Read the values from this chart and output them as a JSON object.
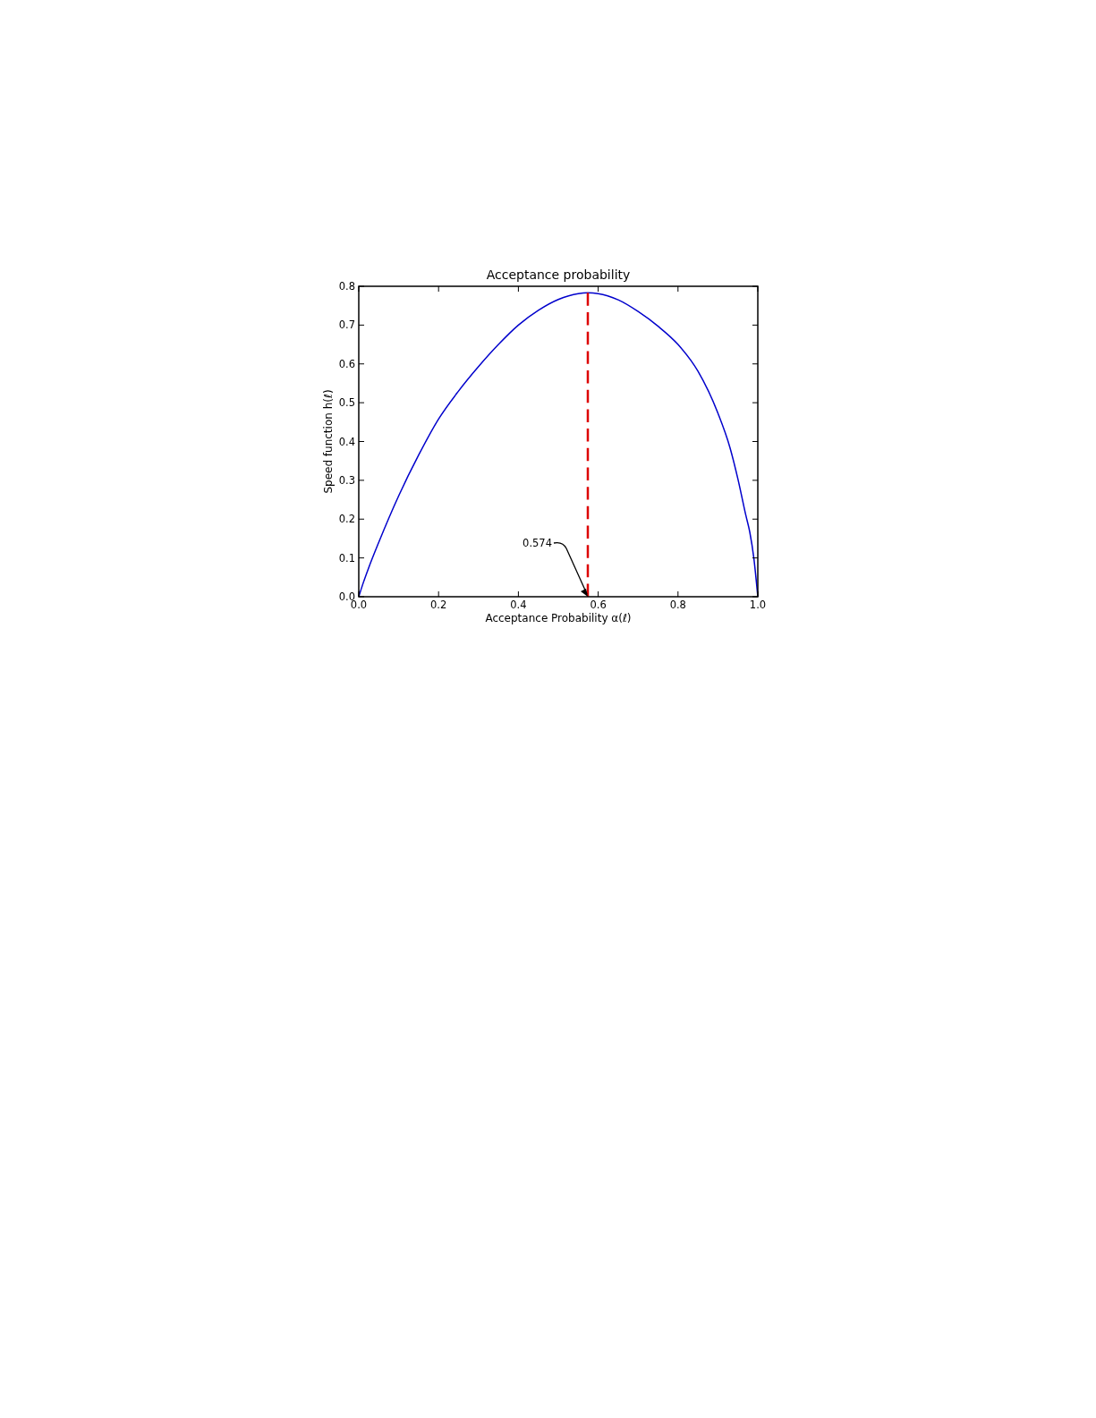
{
  "chart_data": {
    "type": "line",
    "title": "Acceptance probability",
    "xlabel": "Acceptance Probability  α(ℓ)",
    "ylabel": "Speed function  h(ℓ)",
    "xlim": [
      0,
      1
    ],
    "ylim": [
      0,
      0.8
    ],
    "xticks": [
      {
        "value": 0,
        "label": "0.0"
      },
      0.2,
      0.4,
      0.6,
      0.8,
      {
        "value": 1,
        "label": "1.0"
      }
    ],
    "yticks": [
      {
        "value": 0,
        "label": "0.0"
      },
      0.1,
      0.2,
      0.3,
      0.4,
      0.5,
      0.6,
      0.7,
      0.8
    ],
    "grid": false,
    "series": [
      {
        "color": "#0000cc",
        "line_style": "solid",
        "x": [
          0,
          0.01,
          0.025,
          0.05,
          0.1,
          0.15,
          0.2,
          0.25,
          0.3,
          0.35,
          0.4,
          0.45,
          0.5,
          0.55,
          0.574,
          0.6,
          0.65,
          0.7,
          0.75,
          0.8,
          0.85,
          0.9,
          0.93,
          0.95,
          0.97,
          0.98,
          0.99,
          1
        ],
        "values": [
          0,
          0.032,
          0.075,
          0.14,
          0.26,
          0.365,
          0.458,
          0.53,
          0.593,
          0.65,
          0.7,
          0.738,
          0.766,
          0.781,
          0.783,
          0.781,
          0.765,
          0.735,
          0.697,
          0.65,
          0.581,
          0.473,
          0.385,
          0.304,
          0.21,
          0.166,
          0.1,
          0
        ]
      },
      {
        "color": "#dd0000",
        "line_style": "dashed",
        "x": [
          0.574,
          0.574
        ],
        "values": [
          0,
          0.783
        ]
      }
    ],
    "annotations": [
      {
        "text": "0.574",
        "x": 0.574,
        "y": 0
      }
    ]
  }
}
